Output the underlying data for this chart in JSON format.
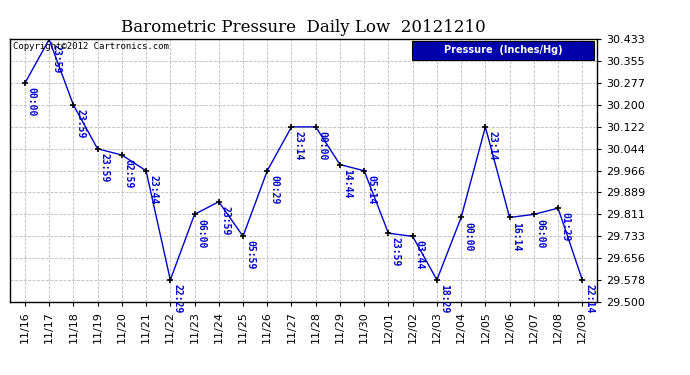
{
  "title": "Barometric Pressure  Daily Low  20121210",
  "copyright": "Copyright©2012 Cartronics.com",
  "legend_label": "Pressure  (Inches/Hg)",
  "xlabel_dates": [
    "11/16",
    "11/17",
    "11/18",
    "11/19",
    "11/20",
    "11/21",
    "11/22",
    "11/23",
    "11/24",
    "11/25",
    "11/26",
    "11/27",
    "11/28",
    "11/29",
    "11/30",
    "12/01",
    "12/02",
    "12/03",
    "12/04",
    "12/05",
    "12/06",
    "12/07",
    "12/08",
    "12/09"
  ],
  "y_values": [
    30.277,
    30.433,
    30.2,
    30.044,
    30.022,
    29.966,
    29.578,
    29.811,
    29.856,
    29.733,
    29.966,
    30.122,
    30.122,
    29.988,
    29.966,
    29.744,
    29.733,
    29.578,
    29.8,
    30.122,
    29.8,
    29.811,
    29.833,
    29.578
  ],
  "point_labels": [
    "00:00",
    "23:59",
    "23:59",
    "23:59",
    "02:59",
    "23:44",
    "22:29",
    "06:00",
    "23:59",
    "05:59",
    "00:29",
    "23:14",
    "00:00",
    "14:44",
    "05:14",
    "23:59",
    "03:44",
    "18:29",
    "00:00",
    "23:14",
    "16:14",
    "06:00",
    "01:29",
    "22:14"
  ],
  "ylim_min": 29.5,
  "ylim_max": 30.433,
  "yticks": [
    29.5,
    29.578,
    29.656,
    29.733,
    29.811,
    29.889,
    29.966,
    30.044,
    30.122,
    30.2,
    30.277,
    30.355,
    30.433
  ],
  "line_color": "#0000cc",
  "label_color": "#0000cc",
  "marker_color": "#000000",
  "background_color": "#ffffff",
  "plot_bg_color": "#ffffff",
  "grid_color": "#bbbbbb",
  "legend_bg": "#0000aa",
  "legend_fg": "#ffffff",
  "title_fontsize": 12,
  "tick_fontsize": 8,
  "label_fontsize": 7,
  "copyright_fontsize": 6.5
}
